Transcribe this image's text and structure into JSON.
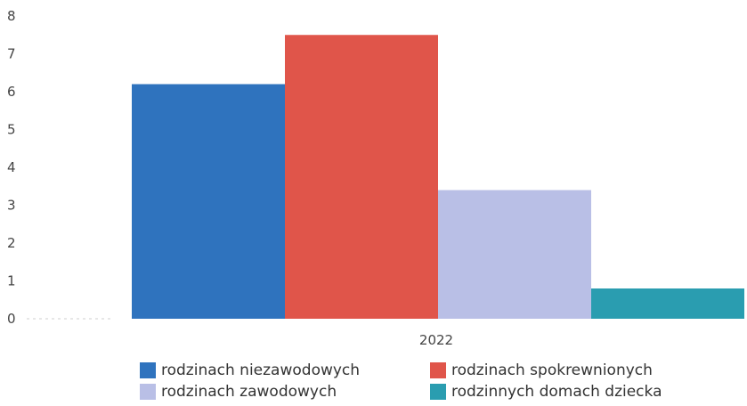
{
  "chart_data": {
    "type": "bar",
    "categories": [
      "2022"
    ],
    "series": [
      {
        "name": "rodzinach niezawodowych",
        "values": [
          6.2
        ],
        "color": "#2f73be"
      },
      {
        "name": "rodzinach spokrewnionych",
        "values": [
          7.5
        ],
        "color": "#e0554a"
      },
      {
        "name": "rodzinach zawodowych",
        "values": [
          3.4
        ],
        "color": "#b9bfe6"
      },
      {
        "name": "rodzinnych domach dziecka",
        "values": [
          0.8
        ],
        "color": "#2a9db0"
      }
    ],
    "yticks": [
      "0",
      "1",
      "2",
      "3",
      "4",
      "5",
      "6",
      "7",
      "8"
    ],
    "ylim": [
      0,
      8
    ],
    "title": "",
    "xlabel": "",
    "ylabel": "",
    "grid": false,
    "legend_position": "bottom"
  }
}
